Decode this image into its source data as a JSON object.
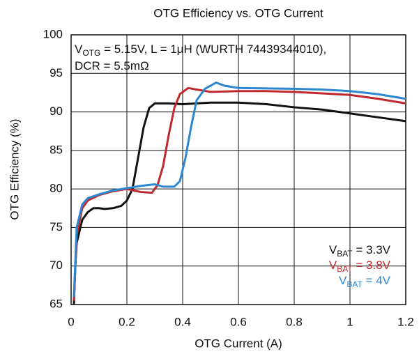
{
  "chart_data": {
    "type": "line",
    "title": "OTG Efficiency vs. OTG Current",
    "xlabel": "OTG Current (A)",
    "ylabel": "OTG Efficiency (%)",
    "annotation": [
      [
        "V",
        "OTG",
        " = 5.15V, L = 1μH (WURTH 74439344010),"
      ],
      [
        "DCR = 5.5mΩ"
      ]
    ],
    "xlim": [
      0,
      1.2
    ],
    "xticks": [
      0,
      0.2,
      0.4,
      0.6,
      0.8,
      1,
      1.2
    ],
    "ylim": [
      65,
      100
    ],
    "yticks": [
      65,
      70,
      75,
      80,
      85,
      90,
      95,
      100
    ],
    "grid": true,
    "legend": "lower right",
    "series": [
      {
        "name": [
          "V",
          "BAT",
          " = 3.3V"
        ],
        "color": "#111111",
        "x": [
          0.01,
          0.015,
          0.02,
          0.04,
          0.06,
          0.08,
          0.1,
          0.12,
          0.15,
          0.18,
          0.2,
          0.22,
          0.24,
          0.26,
          0.28,
          0.3,
          0.35,
          0.4,
          0.5,
          0.6,
          0.7,
          0.8,
          0.9,
          1.0,
          1.1,
          1.2
        ],
        "values": [
          65,
          70,
          73,
          76,
          77,
          77.5,
          77.5,
          77.4,
          77.5,
          77.8,
          78.5,
          80,
          84,
          88,
          90.5,
          91.1,
          91.1,
          91.0,
          91.2,
          91.2,
          91,
          90.6,
          90.3,
          89.8,
          89.3,
          88.8
        ]
      },
      {
        "name": [
          "V",
          "BAT",
          " = 3.8V"
        ],
        "color": "#c0282d",
        "x": [
          0.01,
          0.02,
          0.04,
          0.06,
          0.1,
          0.15,
          0.2,
          0.25,
          0.29,
          0.31,
          0.33,
          0.35,
          0.37,
          0.39,
          0.42,
          0.45,
          0.5,
          0.6,
          0.7,
          0.8,
          0.9,
          1.0,
          1.1,
          1.2
        ],
        "values": [
          65.5,
          74,
          77.5,
          78.5,
          79.2,
          79.7,
          80,
          79.6,
          79.5,
          80.5,
          83,
          87,
          90.5,
          92.3,
          93.1,
          92.9,
          92.6,
          92.7,
          92.7,
          92.6,
          92.4,
          92.2,
          91.7,
          91.1
        ]
      },
      {
        "name": [
          "V",
          "BAT",
          " = 4V"
        ],
        "color": "#2c87d0",
        "x": [
          0.01,
          0.02,
          0.04,
          0.06,
          0.1,
          0.15,
          0.2,
          0.25,
          0.3,
          0.33,
          0.37,
          0.39,
          0.41,
          0.43,
          0.45,
          0.48,
          0.52,
          0.55,
          0.6,
          0.8,
          0.9,
          1.0,
          1.1,
          1.2
        ],
        "values": [
          66,
          75,
          78,
          78.8,
          79.3,
          79.8,
          80.1,
          80.4,
          80.6,
          80.3,
          80.3,
          81,
          84,
          88,
          91.5,
          93,
          93.8,
          93.4,
          93.1,
          93,
          92.9,
          92.7,
          92.3,
          91.7
        ]
      }
    ]
  }
}
